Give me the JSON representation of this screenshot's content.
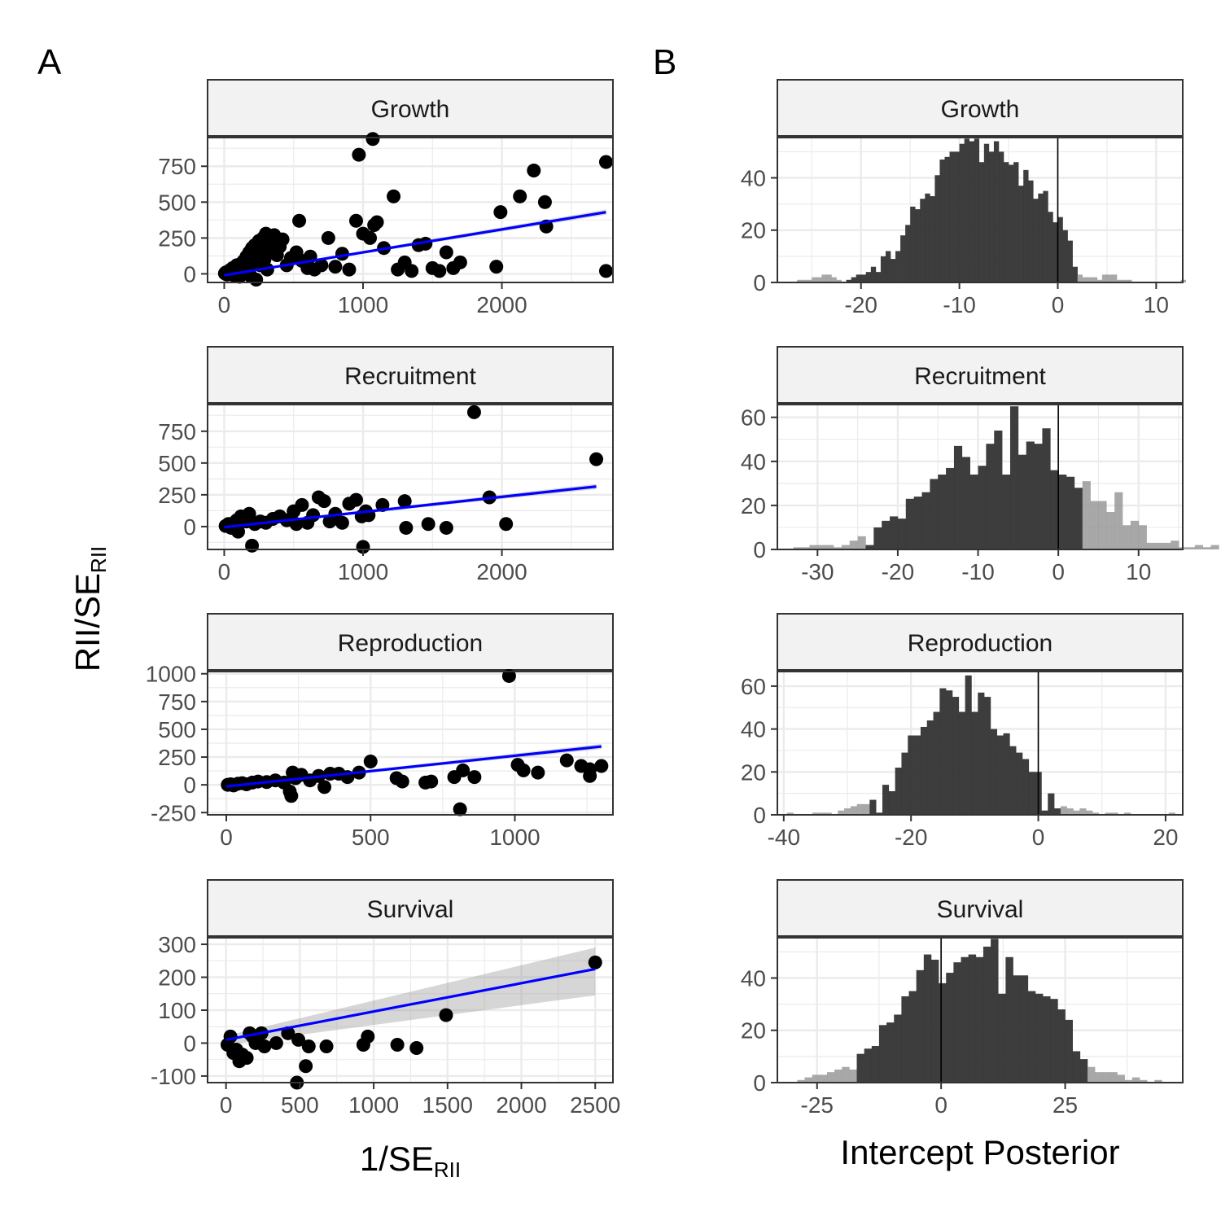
{
  "panel_labels": {
    "left": "A",
    "right": "B"
  },
  "axis_titles": {
    "left_y_main": "RII/SE",
    "left_y_sub": "RII",
    "left_x_main": "1/SE",
    "left_x_sub": "RII",
    "right_x": "Intercept Posterior"
  },
  "colors": {
    "points": "#000000",
    "fit_line": "#0000ff",
    "ribbon": "#999999",
    "hist_main": "#333333",
    "hist_tail": "#999999",
    "strip_bg": "#f2f2f2",
    "grid": "#ebebeb",
    "frame": "#333333"
  },
  "chart_data": [
    {
      "type": "scatter",
      "facet": "Growth",
      "xlabel": "1/SE_RII",
      "ylabel": "RII/SE_RII",
      "xlim": [
        -120,
        2800
      ],
      "ylim": [
        -60,
        950
      ],
      "x_ticks": [
        0,
        1000,
        2000
      ],
      "y_ticks": [
        0,
        250,
        500,
        750
      ],
      "points": [
        [
          5,
          3
        ],
        [
          12,
          10
        ],
        [
          20,
          -5
        ],
        [
          30,
          15
        ],
        [
          40,
          25
        ],
        [
          50,
          8
        ],
        [
          60,
          40
        ],
        [
          70,
          -10
        ],
        [
          80,
          30
        ],
        [
          90,
          60
        ],
        [
          100,
          20
        ],
        [
          110,
          -20
        ],
        [
          120,
          70
        ],
        [
          130,
          45
        ],
        [
          140,
          90
        ],
        [
          150,
          10
        ],
        [
          160,
          120
        ],
        [
          170,
          55
        ],
        [
          180,
          150
        ],
        [
          190,
          -15
        ],
        [
          200,
          180
        ],
        [
          210,
          80
        ],
        [
          220,
          200
        ],
        [
          230,
          -40
        ],
        [
          240,
          140
        ],
        [
          250,
          230
        ],
        [
          260,
          60
        ],
        [
          270,
          180
        ],
        [
          280,
          250
        ],
        [
          290,
          100
        ],
        [
          300,
          280
        ],
        [
          310,
          30
        ],
        [
          320,
          170
        ],
        [
          340,
          220
        ],
        [
          360,
          270
        ],
        [
          380,
          130
        ],
        [
          400,
          190
        ],
        [
          420,
          240
        ],
        [
          450,
          60
        ],
        [
          480,
          110
        ],
        [
          520,
          150
        ],
        [
          540,
          370
        ],
        [
          560,
          90
        ],
        [
          600,
          40
        ],
        [
          620,
          120
        ],
        [
          650,
          30
        ],
        [
          700,
          60
        ],
        [
          750,
          250
        ],
        [
          800,
          50
        ],
        [
          850,
          140
        ],
        [
          900,
          30
        ],
        [
          950,
          370
        ],
        [
          970,
          830
        ],
        [
          1000,
          280
        ],
        [
          1050,
          250
        ],
        [
          1070,
          940
        ],
        [
          1080,
          340
        ],
        [
          1100,
          360
        ],
        [
          1150,
          180
        ],
        [
          1220,
          540
        ],
        [
          1250,
          30
        ],
        [
          1300,
          80
        ],
        [
          1350,
          20
        ],
        [
          1400,
          200
        ],
        [
          1450,
          210
        ],
        [
          1500,
          40
        ],
        [
          1550,
          20
        ],
        [
          1600,
          150
        ],
        [
          1650,
          40
        ],
        [
          1700,
          80
        ],
        [
          1960,
          50
        ],
        [
          1990,
          430
        ],
        [
          2130,
          540
        ],
        [
          2230,
          720
        ],
        [
          2310,
          500
        ],
        [
          2320,
          330
        ],
        [
          2750,
          780
        ],
        [
          2750,
          20
        ]
      ],
      "fit": {
        "x": [
          0,
          2750
        ],
        "y": [
          -10,
          430
        ]
      }
    },
    {
      "type": "scatter",
      "facet": "Recruitment",
      "xlabel": "1/SE_RII",
      "ylabel": "RII/SE_RII",
      "xlim": [
        -120,
        2800
      ],
      "ylim": [
        -180,
        960
      ],
      "x_ticks": [
        0,
        1000,
        2000
      ],
      "y_ticks": [
        0,
        250,
        500,
        750
      ],
      "points": [
        [
          10,
          5
        ],
        [
          30,
          20
        ],
        [
          50,
          -10
        ],
        [
          70,
          30
        ],
        [
          90,
          50
        ],
        [
          100,
          -40
        ],
        [
          120,
          80
        ],
        [
          140,
          60
        ],
        [
          160,
          40
        ],
        [
          180,
          100
        ],
        [
          200,
          -150
        ],
        [
          220,
          20
        ],
        [
          260,
          40
        ],
        [
          300,
          30
        ],
        [
          350,
          60
        ],
        [
          400,
          80
        ],
        [
          450,
          50
        ],
        [
          500,
          120
        ],
        [
          520,
          20
        ],
        [
          560,
          170
        ],
        [
          600,
          30
        ],
        [
          640,
          90
        ],
        [
          680,
          230
        ],
        [
          720,
          200
        ],
        [
          760,
          40
        ],
        [
          800,
          100
        ],
        [
          850,
          30
        ],
        [
          900,
          180
        ],
        [
          950,
          210
        ],
        [
          990,
          80
        ],
        [
          1000,
          -160
        ],
        [
          1020,
          120
        ],
        [
          1040,
          90
        ],
        [
          1140,
          170
        ],
        [
          1300,
          200
        ],
        [
          1310,
          -10
        ],
        [
          1470,
          20
        ],
        [
          1600,
          -10
        ],
        [
          1800,
          900
        ],
        [
          1910,
          230
        ],
        [
          2030,
          20
        ],
        [
          2680,
          530
        ]
      ],
      "fit": {
        "x": [
          0,
          2680
        ],
        "y": [
          -5,
          315
        ]
      }
    },
    {
      "type": "scatter",
      "facet": "Reproduction",
      "xlabel": "1/SE_RII",
      "ylabel": "RII/SE_RII",
      "xlim": [
        -65,
        1340
      ],
      "ylim": [
        -270,
        1020
      ],
      "x_ticks": [
        0,
        500,
        1000
      ],
      "y_ticks": [
        -250,
        0,
        250,
        500,
        750,
        1000
      ],
      "points": [
        [
          5,
          0
        ],
        [
          15,
          5
        ],
        [
          25,
          -5
        ],
        [
          40,
          10
        ],
        [
          55,
          15
        ],
        [
          70,
          5
        ],
        [
          90,
          20
        ],
        [
          110,
          30
        ],
        [
          140,
          25
        ],
        [
          170,
          40
        ],
        [
          200,
          20
        ],
        [
          220,
          -60
        ],
        [
          225,
          -100
        ],
        [
          230,
          110
        ],
        [
          240,
          60
        ],
        [
          260,
          90
        ],
        [
          290,
          40
        ],
        [
          320,
          80
        ],
        [
          340,
          -20
        ],
        [
          360,
          100
        ],
        [
          390,
          100
        ],
        [
          420,
          70
        ],
        [
          460,
          110
        ],
        [
          500,
          210
        ],
        [
          590,
          60
        ],
        [
          610,
          30
        ],
        [
          690,
          20
        ],
        [
          710,
          30
        ],
        [
          790,
          70
        ],
        [
          810,
          -220
        ],
        [
          820,
          130
        ],
        [
          860,
          70
        ],
        [
          980,
          980
        ],
        [
          1010,
          180
        ],
        [
          1030,
          130
        ],
        [
          1080,
          110
        ],
        [
          1180,
          220
        ],
        [
          1230,
          170
        ],
        [
          1260,
          140
        ],
        [
          1260,
          80
        ],
        [
          1300,
          170
        ]
      ],
      "fit": {
        "x": [
          0,
          1300
        ],
        "y": [
          -15,
          345
        ]
      }
    },
    {
      "type": "scatter",
      "facet": "Survival",
      "xlabel": "1/SE_RII",
      "ylabel": "RII/SE_RII",
      "xlim": [
        -125,
        2620
      ],
      "ylim": [
        -120,
        320
      ],
      "x_ticks": [
        0,
        500,
        1000,
        1500,
        2000,
        2500
      ],
      "y_ticks": [
        -100,
        0,
        100,
        200,
        300
      ],
      "points": [
        [
          10,
          -5
        ],
        [
          30,
          20
        ],
        [
          50,
          -30
        ],
        [
          70,
          -20
        ],
        [
          90,
          -55
        ],
        [
          110,
          -35
        ],
        [
          140,
          -45
        ],
        [
          160,
          30
        ],
        [
          180,
          20
        ],
        [
          200,
          0
        ],
        [
          240,
          30
        ],
        [
          260,
          -10
        ],
        [
          340,
          0
        ],
        [
          420,
          30
        ],
        [
          480,
          -120
        ],
        [
          490,
          10
        ],
        [
          540,
          -70
        ],
        [
          560,
          -10
        ],
        [
          680,
          -10
        ],
        [
          930,
          -5
        ],
        [
          960,
          20
        ],
        [
          1160,
          -5
        ],
        [
          1290,
          -15
        ],
        [
          1490,
          85
        ],
        [
          2500,
          245
        ]
      ],
      "fit": {
        "x": [
          0,
          2500
        ],
        "y": [
          10,
          225
        ]
      },
      "ribbon": {
        "x": [
          0,
          2500
        ],
        "lower": [
          -5,
          145
        ],
        "upper": [
          22,
          290
        ]
      }
    },
    {
      "type": "bar",
      "facet": "Growth",
      "xlabel": "Intercept Posterior",
      "xlim": [
        -28.5,
        12.7
      ],
      "ylim": [
        0,
        55.4
      ],
      "x_ticks": [
        -20,
        -10,
        0,
        10
      ],
      "y_ticks": [
        0,
        20,
        40
      ],
      "bin_start": -28,
      "bin_width": 0.5,
      "central_interval": [
        -22,
        2
      ],
      "vline": 0,
      "counts": [
        0,
        0,
        0,
        1,
        1,
        1,
        2,
        2,
        3,
        3,
        2,
        1,
        0,
        1,
        2,
        3,
        3,
        4,
        6,
        4,
        10,
        12,
        9,
        12,
        18,
        22,
        29,
        28,
        32,
        34,
        33,
        41,
        47,
        48,
        50,
        50,
        53,
        55,
        54,
        55,
        46,
        53,
        50,
        54,
        50,
        46,
        45,
        46,
        37,
        43,
        39,
        32,
        34,
        35,
        27,
        23,
        25,
        20,
        16,
        6,
        3,
        2,
        2,
        2,
        1,
        3,
        3,
        3,
        1,
        1,
        1,
        0,
        0,
        0,
        0,
        0,
        0,
        0,
        0,
        0,
        0,
        1
      ]
    },
    {
      "type": "bar",
      "facet": "Recruitment",
      "xlabel": "Intercept Posterior",
      "xlim": [
        -35,
        15.5
      ],
      "ylim": [
        0,
        65.8
      ],
      "x_ticks": [
        -30,
        -20,
        -10,
        0,
        10
      ],
      "y_ticks": [
        0,
        20,
        40,
        60
      ],
      "bin_start": -33,
      "bin_width": 1,
      "central_interval": [
        -24,
        3
      ],
      "vline": 0,
      "counts": [
        1,
        1,
        2,
        2,
        2,
        1,
        2,
        4,
        6,
        2,
        10,
        13,
        15,
        14,
        23,
        24,
        26,
        32,
        34,
        37,
        47,
        42,
        34,
        38,
        48,
        54,
        34,
        65,
        43,
        49,
        48,
        55,
        36,
        34,
        33,
        28,
        31,
        22,
        22,
        17,
        26,
        11,
        13,
        11,
        3,
        3,
        3,
        4,
        1,
        1,
        2,
        1,
        2,
        0,
        1
      ]
    },
    {
      "type": "bar",
      "facet": "Reproduction",
      "xlabel": "Intercept Posterior",
      "xlim": [
        -41,
        22.7
      ],
      "ylim": [
        0,
        66.8
      ],
      "x_ticks": [
        -40,
        -20,
        0,
        20
      ],
      "y_ticks": [
        0,
        20,
        40,
        60
      ],
      "bin_start": -39.5,
      "bin_width": 1,
      "central_interval": [
        -26.5,
        3.5
      ],
      "vline": 0,
      "counts": [
        1,
        0,
        0,
        0,
        1,
        1,
        1,
        0,
        2,
        3,
        4,
        5,
        5,
        7,
        1,
        14,
        11,
        22,
        29,
        37,
        37,
        41,
        44,
        48,
        59,
        58,
        55,
        48,
        65,
        48,
        57,
        55,
        40,
        37,
        38,
        32,
        29,
        26,
        20,
        20,
        2,
        10,
        3,
        4,
        3,
        2,
        3,
        2,
        1,
        0,
        1,
        1,
        0,
        1,
        0,
        0,
        0,
        0,
        0,
        0,
        1
      ]
    },
    {
      "type": "bar",
      "facet": "Survival",
      "xlabel": "Intercept Posterior",
      "xlim": [
        -33,
        48.7
      ],
      "ylim": [
        0,
        55.4
      ],
      "x_ticks": [
        -25,
        0,
        25
      ],
      "y_ticks": [
        0,
        20,
        40
      ],
      "bin_start": -32,
      "bin_width": 1.5,
      "central_interval": [
        -17,
        29.5
      ],
      "vline": 0,
      "counts": [
        0,
        0,
        1,
        2,
        3,
        3,
        4,
        5,
        6,
        5,
        11,
        13,
        14,
        22,
        23,
        26,
        33,
        35,
        43,
        49,
        47,
        38,
        42,
        46,
        48,
        49,
        48,
        52,
        55,
        34,
        48,
        41,
        41,
        35,
        34,
        33,
        32,
        28,
        24,
        12,
        9,
        6,
        4,
        4,
        4,
        3,
        1,
        2,
        1,
        0,
        1
      ]
    }
  ]
}
